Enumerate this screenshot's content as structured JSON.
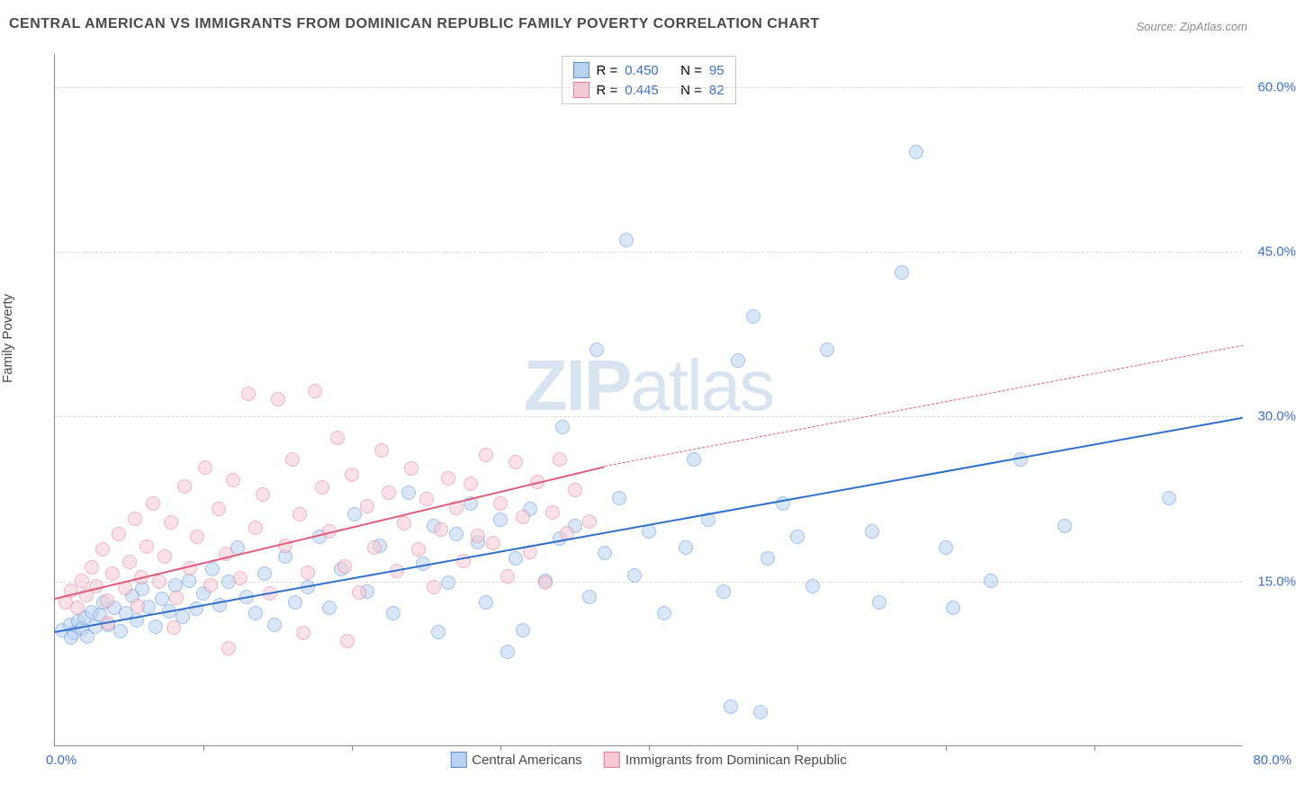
{
  "chart": {
    "type": "scatter",
    "title": "CENTRAL AMERICAN VS IMMIGRANTS FROM DOMINICAN REPUBLIC FAMILY POVERTY CORRELATION CHART",
    "source_label": "Source: ZipAtlas.com",
    "y_axis_label": "Family Poverty",
    "watermark_prefix": "ZIP",
    "watermark_suffix": "atlas",
    "xlim": [
      0,
      80
    ],
    "ylim": [
      0,
      63
    ],
    "x_tick_left": "0.0%",
    "x_tick_right": "80.0%",
    "y_ticks": [
      {
        "v": 15,
        "label": "15.0%"
      },
      {
        "v": 30,
        "label": "30.0%"
      },
      {
        "v": 45,
        "label": "45.0%"
      },
      {
        "v": 60,
        "label": "60.0%"
      }
    ],
    "x_tick_marks": [
      10,
      20,
      30,
      40,
      50,
      60,
      70
    ],
    "grid_color": "#d8d8d8",
    "background_color": "#ffffff",
    "title_color": "#4a4a4a",
    "title_fontsize": 16,
    "label_fontsize": 15,
    "tick_color": "#3b6fc9",
    "marker_radius": 8,
    "marker_stroke_width": 1.2,
    "series": [
      {
        "key": "central_americans",
        "label": "Central Americans",
        "fill": "#b9d2f2",
        "stroke": "#5a8fd6",
        "fill_opacity": 0.55,
        "trend_color": "#2f6fd0",
        "trend_width": 2.5,
        "trend_solid": {
          "x1": 0,
          "y1": 10.5,
          "x2": 80,
          "y2": 30
        },
        "R": "0.450",
        "N": "95",
        "points": [
          [
            0.5,
            10.5
          ],
          [
            1,
            11
          ],
          [
            1.3,
            10.2
          ],
          [
            1.6,
            11.3
          ],
          [
            1.8,
            10.6
          ],
          [
            2,
            11.6
          ],
          [
            2.2,
            9.9
          ],
          [
            2.5,
            12.1
          ],
          [
            2.7,
            10.8
          ],
          [
            3,
            11.9
          ],
          [
            3.3,
            13
          ],
          [
            3.6,
            11
          ],
          [
            4,
            12.5
          ],
          [
            4.4,
            10.4
          ],
          [
            4.8,
            12
          ],
          [
            5.2,
            13.6
          ],
          [
            5.5,
            11.4
          ],
          [
            5.9,
            14.2
          ],
          [
            6.3,
            12.6
          ],
          [
            6.8,
            10.8
          ],
          [
            7.2,
            13.3
          ],
          [
            7.7,
            12.2
          ],
          [
            8.1,
            14.6
          ],
          [
            8.6,
            11.7
          ],
          [
            9,
            15
          ],
          [
            9.5,
            12.4
          ],
          [
            10,
            13.8
          ],
          [
            10.6,
            16
          ],
          [
            11.1,
            12.8
          ],
          [
            11.7,
            14.9
          ],
          [
            12.3,
            18
          ],
          [
            12.9,
            13.5
          ],
          [
            13.5,
            12
          ],
          [
            14.1,
            15.6
          ],
          [
            14.8,
            11
          ],
          [
            15.5,
            17.2
          ],
          [
            16.2,
            13
          ],
          [
            17,
            14.4
          ],
          [
            17.8,
            19
          ],
          [
            18.5,
            12.5
          ],
          [
            19.3,
            16
          ],
          [
            20.2,
            21
          ],
          [
            21,
            14
          ],
          [
            21.9,
            18.2
          ],
          [
            22.8,
            12
          ],
          [
            23.8,
            23
          ],
          [
            24.8,
            16.5
          ],
          [
            25.5,
            20
          ],
          [
            25.8,
            10.3
          ],
          [
            26.5,
            14.8
          ],
          [
            27,
            19.2
          ],
          [
            28,
            22
          ],
          [
            28.5,
            18.5
          ],
          [
            29,
            13
          ],
          [
            30,
            20.5
          ],
          [
            30.5,
            8.5
          ],
          [
            31,
            17
          ],
          [
            31.5,
            10.5
          ],
          [
            32,
            21.5
          ],
          [
            33,
            15
          ],
          [
            34,
            18.8
          ],
          [
            34.2,
            29
          ],
          [
            35,
            20
          ],
          [
            36,
            13.5
          ],
          [
            36.5,
            36
          ],
          [
            37,
            17.5
          ],
          [
            38,
            22.5
          ],
          [
            38.5,
            46
          ],
          [
            39,
            15.5
          ],
          [
            40,
            19.5
          ],
          [
            41,
            12
          ],
          [
            42.5,
            18
          ],
          [
            43,
            26
          ],
          [
            44,
            20.5
          ],
          [
            45,
            14
          ],
          [
            45.5,
            3.5
          ],
          [
            46,
            35
          ],
          [
            47,
            39
          ],
          [
            47.5,
            3
          ],
          [
            48,
            17
          ],
          [
            49,
            22
          ],
          [
            50,
            19
          ],
          [
            51,
            14.5
          ],
          [
            52,
            36
          ],
          [
            55,
            19.5
          ],
          [
            55.5,
            13
          ],
          [
            57,
            43
          ],
          [
            58,
            54
          ],
          [
            60,
            18
          ],
          [
            60.5,
            12.5
          ],
          [
            63,
            15
          ],
          [
            65,
            26
          ],
          [
            68,
            20
          ],
          [
            75,
            22.5
          ],
          [
            1.1,
            9.8
          ]
        ]
      },
      {
        "key": "dominican",
        "label": "Immigrants from Dominican Republic",
        "fill": "#f6c9d4",
        "stroke": "#e27a93",
        "fill_opacity": 0.55,
        "trend_color": "#e05a7a",
        "trend_width": 2.2,
        "trend_solid": {
          "x1": 0,
          "y1": 13.5,
          "x2": 37,
          "y2": 25.5
        },
        "trend_dashed": {
          "x1": 37,
          "y1": 25.5,
          "x2": 80,
          "y2": 36.5
        },
        "R": "0.445",
        "N": "82",
        "points": [
          [
            0.7,
            13
          ],
          [
            1.1,
            14.1
          ],
          [
            1.5,
            12.5
          ],
          [
            1.8,
            15
          ],
          [
            2.1,
            13.7
          ],
          [
            2.5,
            16.2
          ],
          [
            2.8,
            14.5
          ],
          [
            3.2,
            17.8
          ],
          [
            3.5,
            13.2
          ],
          [
            3.6,
            11.1
          ],
          [
            3.9,
            15.6
          ],
          [
            4.3,
            19.2
          ],
          [
            4.7,
            14.3
          ],
          [
            5,
            16.7
          ],
          [
            5.4,
            20.6
          ],
          [
            5.6,
            12.7
          ],
          [
            5.8,
            15.3
          ],
          [
            6.2,
            18.1
          ],
          [
            6.6,
            22
          ],
          [
            7,
            14.9
          ],
          [
            7.4,
            17.2
          ],
          [
            7.8,
            20.3
          ],
          [
            8,
            10.7
          ],
          [
            8.2,
            13.4
          ],
          [
            8.7,
            23.6
          ],
          [
            9.1,
            16.1
          ],
          [
            9.6,
            19
          ],
          [
            10.1,
            25.3
          ],
          [
            10.5,
            14.6
          ],
          [
            11,
            21.5
          ],
          [
            11.5,
            17.4
          ],
          [
            11.7,
            8.8
          ],
          [
            12,
            24.1
          ],
          [
            12.5,
            15.2
          ],
          [
            13,
            32
          ],
          [
            13.5,
            19.8
          ],
          [
            14,
            22.8
          ],
          [
            14.5,
            13.8
          ],
          [
            15,
            31.5
          ],
          [
            15.5,
            18.2
          ],
          [
            16,
            26
          ],
          [
            16.5,
            21
          ],
          [
            16.7,
            10.2
          ],
          [
            17,
            15.7
          ],
          [
            17.5,
            32.2
          ],
          [
            18,
            23.5
          ],
          [
            18.5,
            19.5
          ],
          [
            19,
            28
          ],
          [
            19.5,
            16.3
          ],
          [
            19.7,
            9.5
          ],
          [
            20,
            24.6
          ],
          [
            20.5,
            13.9
          ],
          [
            21,
            21.8
          ],
          [
            21.5,
            18
          ],
          [
            22,
            26.8
          ],
          [
            22.5,
            23
          ],
          [
            23,
            15.9
          ],
          [
            23.5,
            20.2
          ],
          [
            24,
            25.2
          ],
          [
            24.5,
            17.8
          ],
          [
            25,
            22.4
          ],
          [
            25.5,
            14.4
          ],
          [
            26,
            19.6
          ],
          [
            26.5,
            24.3
          ],
          [
            27,
            21.6
          ],
          [
            27.5,
            16.8
          ],
          [
            28,
            23.8
          ],
          [
            28.5,
            19.1
          ],
          [
            29,
            26.4
          ],
          [
            29.5,
            18.4
          ],
          [
            30,
            22
          ],
          [
            30.5,
            15.4
          ],
          [
            31,
            25.8
          ],
          [
            31.5,
            20.8
          ],
          [
            32,
            17.6
          ],
          [
            32.5,
            24
          ],
          [
            33,
            14.8
          ],
          [
            33.5,
            21.2
          ],
          [
            34,
            26
          ],
          [
            34.5,
            19.3
          ],
          [
            35,
            23.2
          ],
          [
            36,
            20.4
          ]
        ]
      }
    ],
    "legend_top": {
      "r_label": "R =",
      "n_label": "N ="
    }
  }
}
